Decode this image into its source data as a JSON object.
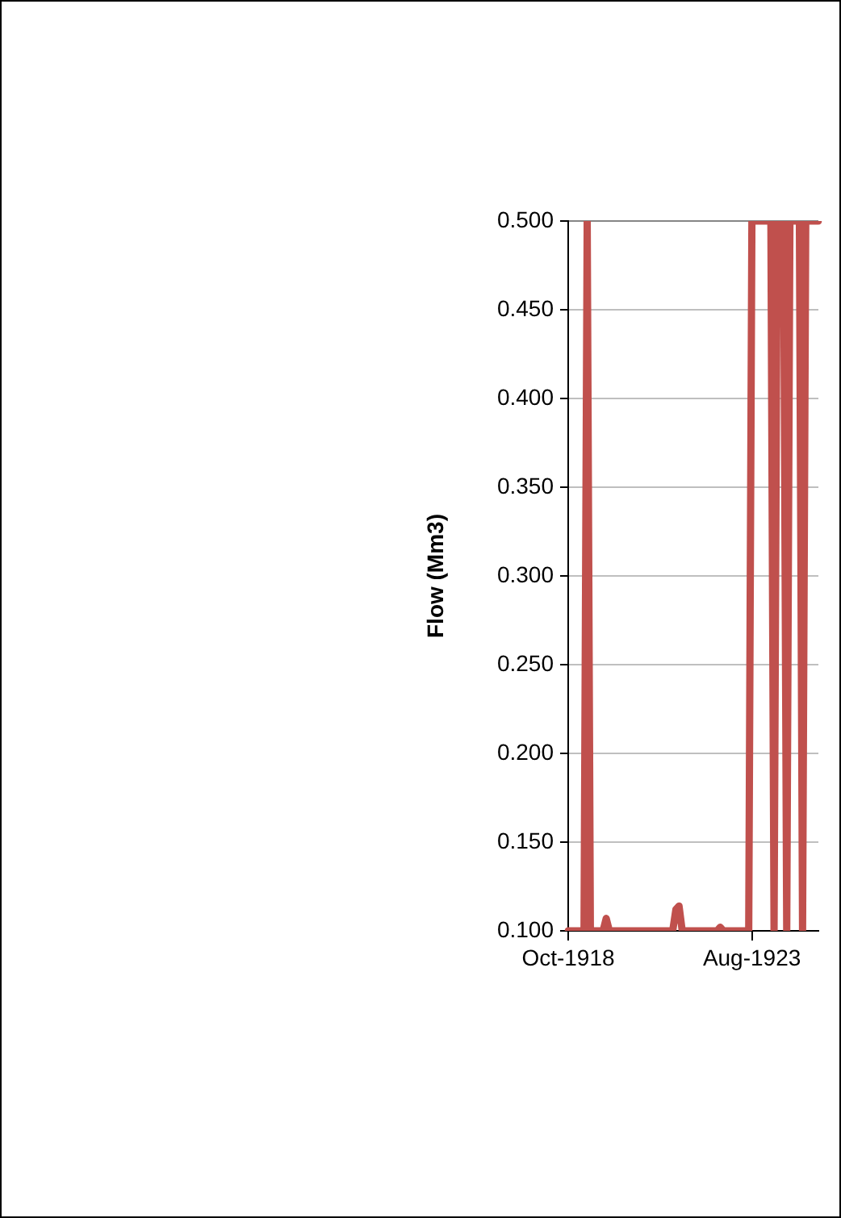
{
  "chart_data": {
    "type": "line",
    "ylabel": "Flow (Mm3)",
    "categories": [
      "Oct-1918",
      null,
      null,
      null,
      null,
      null,
      null,
      null,
      null,
      null,
      null,
      null,
      null,
      null,
      null,
      null,
      null,
      null,
      null,
      null,
      null,
      null,
      null,
      null,
      null,
      null,
      null,
      null,
      null,
      null,
      null,
      null,
      null,
      null,
      null,
      null,
      null,
      null,
      null,
      null,
      null,
      null,
      null,
      null,
      null,
      null,
      null,
      null,
      null,
      null,
      null,
      null,
      null,
      null,
      null,
      null,
      null,
      null,
      "Aug-1923",
      null,
      null,
      null,
      null,
      null,
      null,
      null,
      null,
      null,
      null,
      null,
      null,
      null,
      null,
      null,
      null,
      null,
      null,
      null,
      null,
      null
    ],
    "series": [
      {
        "color": "#c0504d",
        "values": [
          0.1,
          0.1,
          0.1,
          0.1,
          0.1,
          0.1,
          0.5,
          0.1,
          0.1,
          0.1,
          0.1,
          0.1,
          0.107,
          0.1,
          0.1,
          0.1,
          0.1,
          0.1,
          0.1,
          0.1,
          0.1,
          0.1,
          0.1,
          0.1,
          0.1,
          0.1,
          0.1,
          0.1,
          0.1,
          0.1,
          0.1,
          0.1,
          0.1,
          0.1,
          0.112,
          0.114,
          0.1,
          0.1,
          0.1,
          0.1,
          0.1,
          0.1,
          0.1,
          0.1,
          0.1,
          0.1,
          0.1,
          0.1,
          0.102,
          0.1,
          0.1,
          0.1,
          0.1,
          0.1,
          0.1,
          0.1,
          0.1,
          0.1,
          0.5,
          0.5,
          0.5,
          0.5,
          0.5,
          0.5,
          0.5,
          0.1,
          0.5,
          0.5,
          0.5,
          0.1,
          0.5,
          0.5,
          0.5,
          0.5,
          0.1,
          0.5,
          0.5,
          0.5,
          0.5,
          0.5
        ]
      }
    ],
    "ylim": [
      0.1,
      0.5
    ],
    "yticks": [
      {
        "value": 0.1,
        "label": "0.100"
      },
      {
        "value": 0.15,
        "label": "0.150"
      },
      {
        "value": 0.2,
        "label": "0.200"
      },
      {
        "value": 0.25,
        "label": "0.250"
      },
      {
        "value": 0.3,
        "label": "0.300"
      },
      {
        "value": 0.35,
        "label": "0.350"
      },
      {
        "value": 0.4,
        "label": "0.400"
      },
      {
        "value": 0.45,
        "label": "0.450"
      },
      {
        "value": 0.5,
        "label": "0.500"
      }
    ],
    "grid": "y",
    "legend": false,
    "marker": "none",
    "line_style": "solid"
  }
}
